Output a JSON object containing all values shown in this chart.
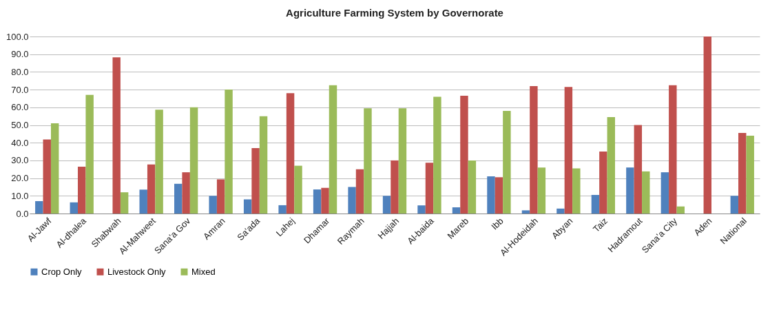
{
  "chart_data": {
    "type": "bar",
    "title": "Agriculture Farming System by Governorate",
    "categories": [
      "Al-Jawf",
      "Al-dhalea",
      "Shabwah",
      "Al-Mahweet",
      "Sana'a Gov",
      "Amran",
      "Sa'ada",
      "Lahej",
      "Dhamar",
      "Raymah",
      "Hajjah",
      "Al-baida",
      "Mareb",
      "Ibb",
      "Al-Hodeidah",
      "Abyan",
      "Taiz",
      "Hadramout",
      "Sana'a City",
      "Aden",
      "National"
    ],
    "series": [
      {
        "name": "Crop Only",
        "color": "#4f81bd",
        "values": [
          7,
          6.3,
          0,
          13.5,
          16.8,
          10,
          8,
          4.7,
          13.6,
          15,
          10,
          4.6,
          3.5,
          21,
          1.8,
          2.8,
          10.5,
          26,
          23.3,
          0,
          10
        ]
      },
      {
        "name": "Livestock Only",
        "color": "#c0504d",
        "values": [
          41.8,
          26.5,
          88.2,
          27.7,
          23.3,
          19.3,
          37,
          68,
          14.5,
          25,
          30,
          28.7,
          66.5,
          20.5,
          72,
          71.5,
          35,
          50,
          72.5,
          100,
          45.5
        ]
      },
      {
        "name": "Mixed",
        "color": "#9bbb59",
        "values": [
          51,
          67,
          12,
          58.7,
          60,
          70,
          55,
          27,
          72.5,
          59.4,
          59.4,
          66,
          30,
          58,
          26,
          25.5,
          54.5,
          23.8,
          4,
          0,
          44
        ]
      }
    ],
    "ylim": [
      0,
      100
    ],
    "yticks": [
      {
        "value": 0,
        "label": "0.0"
      },
      {
        "value": 10,
        "label": "10.0"
      },
      {
        "value": 20,
        "label": "20.0"
      },
      {
        "value": 30,
        "label": "30.0"
      },
      {
        "value": 40,
        "label": "40.0"
      },
      {
        "value": 50,
        "label": "50.0"
      },
      {
        "value": 60,
        "label": "60.0"
      },
      {
        "value": 70,
        "label": "70.0"
      },
      {
        "value": 80,
        "label": "80.0"
      },
      {
        "value": 90,
        "label": "90.0"
      },
      {
        "value": 100,
        "label": "100.0"
      }
    ],
    "grid": "y",
    "legend": "bottom"
  }
}
